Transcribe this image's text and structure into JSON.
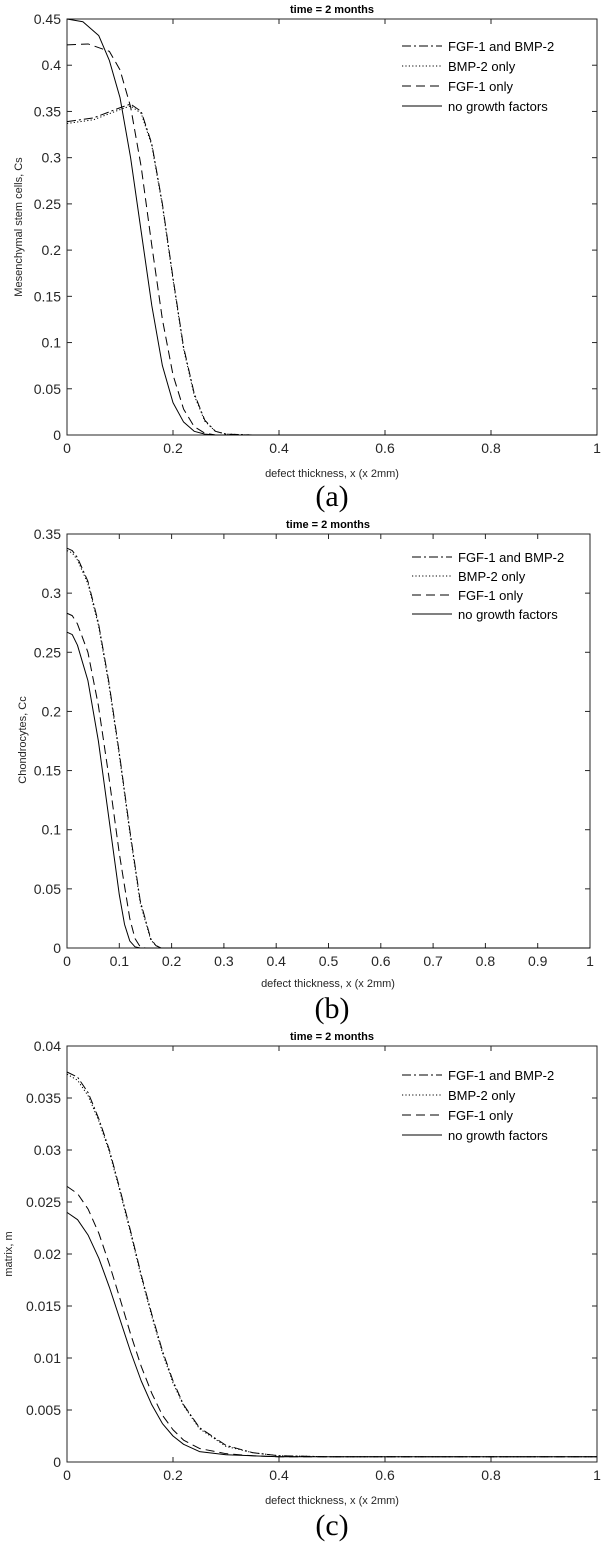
{
  "chart_data": [
    {
      "type": "line",
      "panel_label": "(a)",
      "title": "time = 2 months",
      "xlabel": "defect thickness, x (x 2mm)",
      "ylabel": "Mesenchymal stem cells, Cs",
      "xlim": [
        0,
        1
      ],
      "ylim": [
        0,
        0.45
      ],
      "xticks": [
        "0",
        "0.2",
        "0.4",
        "0.6",
        "0.8",
        "1"
      ],
      "yticks": [
        "0",
        "0.05",
        "0.1",
        "0.15",
        "0.2",
        "0.25",
        "0.3",
        "0.35",
        "0.4",
        "0.45"
      ],
      "legend_position": "top-right",
      "grid": false,
      "series": [
        {
          "name": "FGF-1 and BMP-2",
          "style": "dashdot",
          "color": "#000000",
          "x": [
            0,
            0.05,
            0.1,
            0.12,
            0.14,
            0.16,
            0.18,
            0.2,
            0.22,
            0.24,
            0.26,
            0.28,
            0.3,
            0.35,
            1
          ],
          "y": [
            0.339,
            0.343,
            0.354,
            0.358,
            0.35,
            0.315,
            0.25,
            0.17,
            0.095,
            0.045,
            0.016,
            0.004,
            0.001,
            0,
            0
          ]
        },
        {
          "name": "BMP-2 only",
          "style": "dotted",
          "color": "#000000",
          "x": [
            0,
            0.05,
            0.1,
            0.12,
            0.14,
            0.16,
            0.18,
            0.2,
            0.22,
            0.24,
            0.26,
            0.28,
            0.3,
            0.35,
            1
          ],
          "y": [
            0.337,
            0.341,
            0.352,
            0.356,
            0.348,
            0.313,
            0.248,
            0.168,
            0.093,
            0.043,
            0.015,
            0.004,
            0.001,
            0,
            0
          ]
        },
        {
          "name": "FGF-1 only",
          "style": "dashed",
          "color": "#000000",
          "x": [
            0,
            0.04,
            0.08,
            0.1,
            0.12,
            0.14,
            0.16,
            0.18,
            0.2,
            0.22,
            0.24,
            0.26,
            0.28,
            0.3,
            1
          ],
          "y": [
            0.422,
            0.423,
            0.415,
            0.395,
            0.355,
            0.29,
            0.205,
            0.125,
            0.065,
            0.028,
            0.009,
            0.002,
            0,
            0,
            0
          ]
        },
        {
          "name": "no growth factors",
          "style": "solid",
          "color": "#000000",
          "x": [
            0,
            0.03,
            0.06,
            0.08,
            0.1,
            0.12,
            0.14,
            0.16,
            0.18,
            0.2,
            0.22,
            0.24,
            0.26,
            0.28,
            0.3,
            1
          ],
          "y": [
            0.45,
            0.447,
            0.432,
            0.405,
            0.365,
            0.3,
            0.22,
            0.14,
            0.075,
            0.035,
            0.014,
            0.004,
            0.001,
            0,
            0,
            0
          ]
        }
      ]
    },
    {
      "type": "line",
      "panel_label": "(b)",
      "title": "time = 2 months",
      "xlabel": "defect thickness, x (x 2mm)",
      "ylabel": "Chondrocytes, Cc",
      "xlim": [
        0,
        1
      ],
      "ylim": [
        0,
        0.35
      ],
      "xticks": [
        "0",
        "0.1",
        "0.2",
        "0.3",
        "0.4",
        "0.5",
        "0.6",
        "0.7",
        "0.8",
        "0.9",
        "1"
      ],
      "yticks": [
        "0",
        "0.05",
        "0.1",
        "0.15",
        "0.2",
        "0.25",
        "0.3",
        "0.35"
      ],
      "legend_position": "top-right",
      "grid": false,
      "series": [
        {
          "name": "FGF-1 and BMP-2",
          "style": "dashdot",
          "color": "#000000",
          "x": [
            0,
            0.01,
            0.02,
            0.04,
            0.06,
            0.08,
            0.1,
            0.12,
            0.14,
            0.16,
            0.17,
            0.18,
            0.2,
            1
          ],
          "y": [
            0.338,
            0.336,
            0.33,
            0.31,
            0.275,
            0.225,
            0.165,
            0.1,
            0.04,
            0.008,
            0.002,
            0,
            0,
            0
          ]
        },
        {
          "name": "BMP-2 only",
          "style": "dotted",
          "color": "#000000",
          "x": [
            0,
            0.01,
            0.02,
            0.04,
            0.06,
            0.08,
            0.1,
            0.12,
            0.14,
            0.16,
            0.17,
            0.18,
            0.2,
            1
          ],
          "y": [
            0.336,
            0.334,
            0.328,
            0.308,
            0.273,
            0.223,
            0.163,
            0.098,
            0.038,
            0.007,
            0.002,
            0,
            0,
            0
          ]
        },
        {
          "name": "FGF-1 only",
          "style": "dashed",
          "color": "#000000",
          "x": [
            0,
            0.01,
            0.02,
            0.04,
            0.06,
            0.08,
            0.1,
            0.12,
            0.13,
            0.14,
            0.15,
            1
          ],
          "y": [
            0.283,
            0.281,
            0.274,
            0.25,
            0.205,
            0.145,
            0.08,
            0.025,
            0.008,
            0.001,
            0,
            0
          ]
        },
        {
          "name": "no growth factors",
          "style": "solid",
          "color": "#000000",
          "x": [
            0,
            0.01,
            0.02,
            0.04,
            0.06,
            0.08,
            0.1,
            0.11,
            0.12,
            0.13,
            0.14,
            1
          ],
          "y": [
            0.267,
            0.265,
            0.256,
            0.226,
            0.175,
            0.11,
            0.045,
            0.02,
            0.006,
            0.001,
            0,
            0
          ]
        }
      ]
    },
    {
      "type": "line",
      "panel_label": "(c)",
      "title": "time = 2 months",
      "xlabel": "defect thickness, x (x 2mm)",
      "ylabel": "matrix, m",
      "xlim": [
        0,
        1
      ],
      "ylim": [
        0,
        0.04
      ],
      "xticks": [
        "0",
        "0.2",
        "0.4",
        "0.6",
        "0.8",
        "1"
      ],
      "yticks": [
        "0",
        "0.005",
        "0.01",
        "0.015",
        "0.02",
        "0.025",
        "0.03",
        "0.035",
        "0.04"
      ],
      "legend_position": "top-right",
      "grid": false,
      "series": [
        {
          "name": "FGF-1 and BMP-2",
          "style": "dashdot",
          "color": "#000000",
          "x": [
            0,
            0.02,
            0.04,
            0.06,
            0.08,
            0.1,
            0.12,
            0.14,
            0.16,
            0.18,
            0.2,
            0.22,
            0.25,
            0.3,
            0.35,
            0.4,
            0.5,
            1
          ],
          "y": [
            0.0375,
            0.037,
            0.0355,
            0.033,
            0.03,
            0.0262,
            0.0222,
            0.018,
            0.0142,
            0.0107,
            0.0078,
            0.0055,
            0.0033,
            0.0016,
            0.0009,
            0.0006,
            0.0005,
            0.0005
          ]
        },
        {
          "name": "BMP-2 only",
          "style": "dotted",
          "color": "#000000",
          "x": [
            0,
            0.02,
            0.04,
            0.06,
            0.08,
            0.1,
            0.12,
            0.14,
            0.16,
            0.18,
            0.2,
            0.22,
            0.25,
            0.3,
            0.35,
            0.4,
            0.5,
            1
          ],
          "y": [
            0.0373,
            0.0367,
            0.0352,
            0.0328,
            0.0298,
            0.026,
            0.022,
            0.0178,
            0.014,
            0.0105,
            0.0076,
            0.0054,
            0.0032,
            0.0015,
            0.0009,
            0.0006,
            0.0005,
            0.0005
          ]
        },
        {
          "name": "FGF-1 only",
          "style": "dashed",
          "color": "#000000",
          "x": [
            0,
            0.02,
            0.04,
            0.06,
            0.08,
            0.1,
            0.12,
            0.14,
            0.16,
            0.18,
            0.2,
            0.22,
            0.25,
            0.3,
            0.35,
            0.4,
            0.5,
            1
          ],
          "y": [
            0.0265,
            0.0258,
            0.0243,
            0.022,
            0.019,
            0.0157,
            0.0123,
            0.0092,
            0.0066,
            0.0045,
            0.0031,
            0.0021,
            0.0013,
            0.0008,
            0.0006,
            0.0005,
            0.0005,
            0.0005
          ]
        },
        {
          "name": "no growth factors",
          "style": "solid",
          "color": "#000000",
          "x": [
            0,
            0.02,
            0.04,
            0.06,
            0.08,
            0.1,
            0.12,
            0.14,
            0.16,
            0.18,
            0.2,
            0.22,
            0.25,
            0.3,
            0.35,
            0.4,
            0.5,
            1
          ],
          "y": [
            0.024,
            0.0233,
            0.0218,
            0.0196,
            0.0168,
            0.0137,
            0.0106,
            0.0078,
            0.0055,
            0.0037,
            0.0025,
            0.0017,
            0.001,
            0.0007,
            0.0006,
            0.0005,
            0.0005,
            0.0005
          ]
        }
      ]
    }
  ]
}
